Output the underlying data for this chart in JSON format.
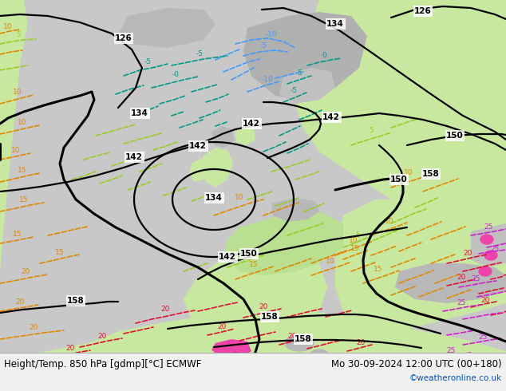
{
  "title_left": "Height/Temp. 850 hPa [gdmp][°C] ECMWF",
  "title_right": "Mo 30-09-2024 12:00 UTC (00+180)",
  "credit": "©weatheronline.co.uk",
  "bg_color": "#c8c8c8",
  "land_green": "#c8e8a0",
  "land_green2": "#b8e090",
  "gray_terrain": "#b0b0b0",
  "sea_color": "#c8c8c8",
  "bottom_bar_color": "#f0f0f0",
  "title_fontsize": 8.5,
  "credit_fontsize": 7.5,
  "credit_color": "#0055bb",
  "orange": "#e08800",
  "teal": "#009988",
  "green_iso": "#66bb00",
  "blue_iso": "#4499ff",
  "ygreen": "#99cc22",
  "red_iso": "#dd1133",
  "magenta_iso": "#cc22cc",
  "figsize": [
    6.34,
    4.9
  ],
  "dpi": 100
}
